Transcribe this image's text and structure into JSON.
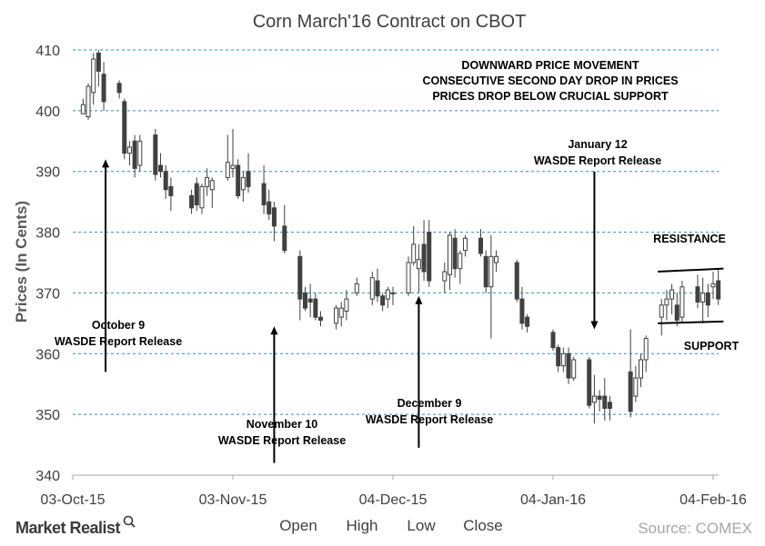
{
  "chart_data": {
    "type": "candlestick",
    "title": "Corn March'16 Contract on CBOT",
    "xlabel": "",
    "ylabel": "Prices (In Cents)",
    "ylim": [
      340,
      410
    ],
    "yticks": [
      "340",
      "350",
      "360",
      "370",
      "380",
      "390",
      "400",
      "410"
    ],
    "xticks": [
      "03-Oct-15",
      "03-Nov-15",
      "04-Dec-15",
      "04-Jan-16",
      "04-Feb-16"
    ],
    "x_range": [
      "2015-10-03",
      "2016-02-04"
    ],
    "grid": "horizontal dashed",
    "legend_labels": [
      "Open",
      "High",
      "Low",
      "Close"
    ],
    "source": "Source: COMEX",
    "brand": "Market Realist",
    "annotations": {
      "top_note": [
        "DOWNWARD PRICE MOVEMENT",
        "CONSECUTIVE SECOND DAY DROP IN PRICES",
        "PRICES DROP BELOW CRUCIAL SUPPORT"
      ],
      "oct9": [
        "October 9",
        "WASDE Report Release"
      ],
      "nov10": [
        "November 10",
        "WASDE Report Release"
      ],
      "dec9": [
        "December 9",
        "WASDE Report Release"
      ],
      "jan12": [
        "January 12",
        "WASDE Report Release"
      ],
      "resistance": "RESISTANCE",
      "support": "SUPPORT"
    },
    "candles": [
      {
        "date": "2015-10-05",
        "open": 399.5,
        "high": 402,
        "low": 399.5,
        "close": 401
      },
      {
        "date": "2015-10-06",
        "open": 399,
        "high": 404.5,
        "low": 398.5,
        "close": 404
      },
      {
        "date": "2015-10-07",
        "open": 403,
        "high": 409.5,
        "low": 401,
        "close": 408.5
      },
      {
        "date": "2015-10-08",
        "open": 409.5,
        "high": 410,
        "low": 404,
        "close": 406.5
      },
      {
        "date": "2015-10-09",
        "open": 406,
        "high": 408,
        "low": 400,
        "close": 401.5
      },
      {
        "date": "2015-10-12",
        "open": 404.5,
        "high": 405,
        "low": 402,
        "close": 403
      },
      {
        "date": "2015-10-13",
        "open": 401.5,
        "high": 402,
        "low": 392,
        "close": 393
      },
      {
        "date": "2015-10-14",
        "open": 393,
        "high": 395,
        "low": 391,
        "close": 394
      },
      {
        "date": "2015-10-15",
        "open": 395,
        "high": 396,
        "low": 389,
        "close": 390.5
      },
      {
        "date": "2015-10-16",
        "open": 391,
        "high": 396,
        "low": 390,
        "close": 395
      },
      {
        "date": "2015-10-19",
        "open": 396,
        "high": 397,
        "low": 388.5,
        "close": 389.5
      },
      {
        "date": "2015-10-20",
        "open": 391,
        "high": 393,
        "low": 389,
        "close": 390
      },
      {
        "date": "2015-10-21",
        "open": 390,
        "high": 391,
        "low": 385.5,
        "close": 387
      },
      {
        "date": "2015-10-22",
        "open": 387.5,
        "high": 389,
        "low": 383.5,
        "close": 386
      },
      {
        "date": "2015-10-26",
        "open": 386,
        "high": 387,
        "low": 383,
        "close": 384
      },
      {
        "date": "2015-10-27",
        "open": 388,
        "high": 389,
        "low": 383.5,
        "close": 384.5
      },
      {
        "date": "2015-10-28",
        "open": 384,
        "high": 388,
        "low": 383,
        "close": 387.5
      },
      {
        "date": "2015-10-29",
        "open": 387.5,
        "high": 390.5,
        "low": 386,
        "close": 389
      },
      {
        "date": "2015-10-30",
        "open": 387,
        "high": 389,
        "low": 384,
        "close": 388.5
      },
      {
        "date": "2015-11-02",
        "open": 389,
        "high": 396,
        "low": 388.5,
        "close": 391.5
      },
      {
        "date": "2015-11-03",
        "open": 390.5,
        "high": 397,
        "low": 389,
        "close": 391
      },
      {
        "date": "2015-11-04",
        "open": 391,
        "high": 392,
        "low": 385.5,
        "close": 386
      },
      {
        "date": "2015-11-05",
        "open": 387,
        "high": 390,
        "low": 385,
        "close": 389
      },
      {
        "date": "2015-11-06",
        "open": 390,
        "high": 393,
        "low": 386.5,
        "close": 387.5
      },
      {
        "date": "2015-11-09",
        "open": 388,
        "high": 391,
        "low": 383,
        "close": 384.5
      },
      {
        "date": "2015-11-10",
        "open": 385,
        "high": 387,
        "low": 382,
        "close": 383
      },
      {
        "date": "2015-11-11",
        "open": 384,
        "high": 385,
        "low": 378.5,
        "close": 381
      },
      {
        "date": "2015-11-13",
        "open": 381,
        "high": 384.5,
        "low": 376.5,
        "close": 377
      },
      {
        "date": "2015-11-16",
        "open": 376,
        "high": 377,
        "low": 365.5,
        "close": 369
      },
      {
        "date": "2015-11-17",
        "open": 370,
        "high": 371,
        "low": 367,
        "close": 367.5
      },
      {
        "date": "2015-11-18",
        "open": 369,
        "high": 371.5,
        "low": 366,
        "close": 368.5
      },
      {
        "date": "2015-11-19",
        "open": 369,
        "high": 370,
        "low": 365.5,
        "close": 366
      },
      {
        "date": "2015-11-20",
        "open": 366,
        "high": 367,
        "low": 364.5,
        "close": 365.5
      },
      {
        "date": "2015-11-23",
        "open": 365,
        "high": 368,
        "low": 364,
        "close": 367.5
      },
      {
        "date": "2015-11-24",
        "open": 366,
        "high": 368.5,
        "low": 364.5,
        "close": 367.5
      },
      {
        "date": "2015-11-25",
        "open": 367,
        "high": 370.5,
        "low": 365.5,
        "close": 369
      },
      {
        "date": "2015-11-27",
        "open": 370,
        "high": 372.5,
        "low": 369.5,
        "close": 371.5
      },
      {
        "date": "2015-11-30",
        "open": 369,
        "high": 373.5,
        "low": 368,
        "close": 372.5
      },
      {
        "date": "2015-12-01",
        "open": 372,
        "high": 374,
        "low": 368.5,
        "close": 369.5
      },
      {
        "date": "2015-12-02",
        "open": 369.5,
        "high": 370,
        "low": 367,
        "close": 368
      },
      {
        "date": "2015-12-03",
        "open": 369,
        "high": 371,
        "low": 367.5,
        "close": 370.5
      },
      {
        "date": "2015-12-04",
        "open": 370,
        "high": 371,
        "low": 368,
        "close": 370
      },
      {
        "date": "2015-12-07",
        "open": 370,
        "high": 376,
        "low": 369.5,
        "close": 375
      },
      {
        "date": "2015-12-08",
        "open": 375,
        "high": 381,
        "low": 374.5,
        "close": 378
      },
      {
        "date": "2015-12-09",
        "open": 374,
        "high": 378,
        "low": 370,
        "close": 375.5
      },
      {
        "date": "2015-12-10",
        "open": 378,
        "high": 382,
        "low": 372,
        "close": 373.5
      },
      {
        "date": "2015-12-11",
        "open": 380,
        "high": 382,
        "low": 371,
        "close": 372
      },
      {
        "date": "2015-12-14",
        "open": 372,
        "high": 375,
        "low": 370,
        "close": 373.5
      },
      {
        "date": "2015-12-15",
        "open": 373,
        "high": 380,
        "low": 370.5,
        "close": 379.5
      },
      {
        "date": "2015-12-16",
        "open": 379,
        "high": 380.5,
        "low": 372.5,
        "close": 374
      },
      {
        "date": "2015-12-17",
        "open": 374,
        "high": 377,
        "low": 371.5,
        "close": 376.5
      },
      {
        "date": "2015-12-18",
        "open": 377,
        "high": 379.5,
        "low": 376,
        "close": 379
      },
      {
        "date": "2015-12-21",
        "open": 379,
        "high": 380.5,
        "low": 376,
        "close": 376.5
      },
      {
        "date": "2015-12-22",
        "open": 376,
        "high": 377,
        "low": 370,
        "close": 371
      },
      {
        "date": "2015-12-23",
        "open": 371,
        "high": 379.5,
        "low": 362.5,
        "close": 376
      },
      {
        "date": "2015-12-24",
        "open": 375,
        "high": 377,
        "low": 373.5,
        "close": 376
      },
      {
        "date": "2015-12-28",
        "open": 375,
        "high": 375.5,
        "low": 368.5,
        "close": 369
      },
      {
        "date": "2015-12-29",
        "open": 369,
        "high": 371,
        "low": 364,
        "close": 365
      },
      {
        "date": "2015-12-30",
        "open": 366,
        "high": 366.5,
        "low": 363.5,
        "close": 364.5
      },
      {
        "date": "2016-01-04",
        "open": 363.5,
        "high": 364,
        "low": 360.5,
        "close": 361
      },
      {
        "date": "2016-01-05",
        "open": 361,
        "high": 361.5,
        "low": 357,
        "close": 358
      },
      {
        "date": "2016-01-06",
        "open": 358,
        "high": 361,
        "low": 357,
        "close": 360
      },
      {
        "date": "2016-01-07",
        "open": 360,
        "high": 361,
        "low": 355,
        "close": 356
      },
      {
        "date": "2016-01-08",
        "open": 356,
        "high": 359.5,
        "low": 355.5,
        "close": 359
      },
      {
        "date": "2016-01-11",
        "open": 359,
        "high": 359.5,
        "low": 351,
        "close": 351.5
      },
      {
        "date": "2016-01-12",
        "open": 352,
        "high": 356.5,
        "low": 348.5,
        "close": 353
      },
      {
        "date": "2016-01-13",
        "open": 353,
        "high": 354,
        "low": 350.5,
        "close": 352.5
      },
      {
        "date": "2016-01-14",
        "open": 353,
        "high": 356,
        "low": 349,
        "close": 351
      },
      {
        "date": "2016-01-15",
        "open": 352,
        "high": 353,
        "low": 349,
        "close": 351
      },
      {
        "date": "2016-01-19",
        "open": 357,
        "high": 364,
        "low": 349.5,
        "close": 350.5
      },
      {
        "date": "2016-01-20",
        "open": 353,
        "high": 358,
        "low": 352,
        "close": 356
      },
      {
        "date": "2016-01-21",
        "open": 356,
        "high": 360,
        "low": 354.5,
        "close": 359
      },
      {
        "date": "2016-01-22",
        "open": 359,
        "high": 363,
        "low": 357,
        "close": 362.5
      },
      {
        "date": "2016-01-25",
        "open": 366,
        "high": 369,
        "low": 363,
        "close": 368
      },
      {
        "date": "2016-01-26",
        "open": 368,
        "high": 370.5,
        "low": 365.5,
        "close": 369
      },
      {
        "date": "2016-01-27",
        "open": 369,
        "high": 371.5,
        "low": 366.5,
        "close": 370.5
      },
      {
        "date": "2016-01-28",
        "open": 368,
        "high": 370,
        "low": 364.5,
        "close": 365.5
      },
      {
        "date": "2016-01-29",
        "open": 366,
        "high": 372,
        "low": 365,
        "close": 371
      },
      {
        "date": "2016-02-01",
        "open": 371,
        "high": 373,
        "low": 367.5,
        "close": 368.5
      },
      {
        "date": "2016-02-02",
        "open": 368.5,
        "high": 372.5,
        "low": 365,
        "close": 370
      },
      {
        "date": "2016-02-03",
        "open": 370,
        "high": 371.5,
        "low": 366,
        "close": 368
      },
      {
        "date": "2016-02-04",
        "open": 371,
        "high": 373.5,
        "low": 369,
        "close": 371.5
      },
      {
        "date": "2016-02-05",
        "open": 372,
        "high": 374,
        "low": 368,
        "close": 369
      }
    ],
    "arrows": [
      {
        "date": "2015-10-09",
        "from": 372,
        "to": 391.5
      },
      {
        "date": "2015-11-11",
        "from": 348,
        "to": 364.5
      },
      {
        "date": "2015-12-09",
        "from": 349.5,
        "to": 369.5
      },
      {
        "date": "2016-01-12",
        "from": 390,
        "to": 364
      },
      {
        "date": "2016-01-25",
        "from": 374.5,
        "to": 374.5
      }
    ],
    "colors": {
      "up_candle": "#ffffff",
      "down_candle": "#404040",
      "grid": "#2e8fb3",
      "text": "#404040",
      "source": "#a6a6a6"
    }
  }
}
